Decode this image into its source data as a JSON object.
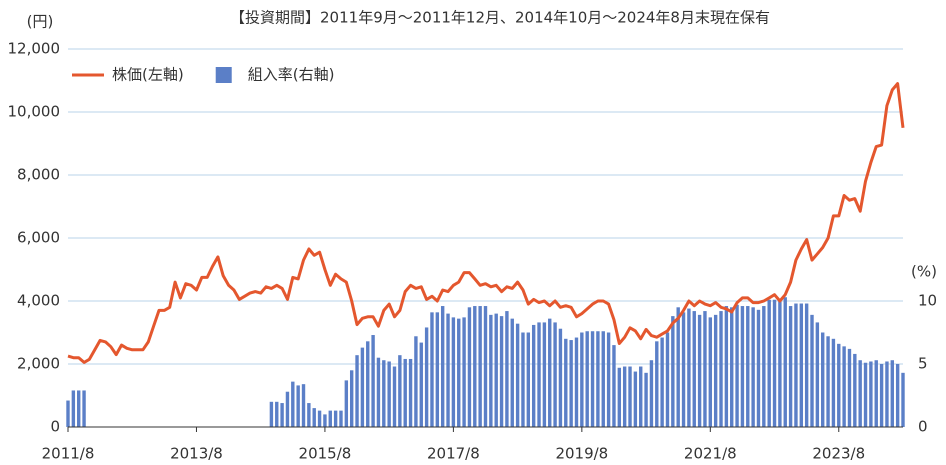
{
  "chart_data": {
    "type": "bar-line",
    "title": "【投資期間】2011年9月～2011年12月、2014年10月～2024年8月末現在保有",
    "y_unit": "(円)",
    "y2_unit": "(%)",
    "legend": "top-left",
    "grid": true,
    "ylim": [
      0,
      12000
    ],
    "yticks": [
      0,
      {
        "value": 2000,
        "label": "2,000"
      },
      {
        "value": 4000,
        "label": "4,000"
      },
      {
        "value": 6000,
        "label": "6,000"
      },
      {
        "value": 8000,
        "label": "8,000"
      },
      {
        "value": 10000,
        "label": "10,000"
      },
      {
        "value": 12000,
        "label": "12,000"
      }
    ],
    "y2lim": [
      0,
      30
    ],
    "y2ticks": [
      0,
      5,
      10
    ],
    "categories": [
      "2011/8",
      null,
      null,
      null,
      null,
      null,
      null,
      null,
      null,
      null,
      null,
      null,
      null,
      null,
      null,
      null,
      null,
      null,
      null,
      null,
      null,
      null,
      null,
      null,
      "2013/8",
      null,
      null,
      null,
      null,
      null,
      null,
      null,
      null,
      null,
      null,
      null,
      null,
      null,
      null,
      null,
      null,
      null,
      null,
      null,
      null,
      null,
      null,
      null,
      "2015/8",
      null,
      null,
      null,
      null,
      null,
      null,
      null,
      null,
      null,
      null,
      null,
      null,
      null,
      null,
      null,
      null,
      null,
      null,
      null,
      null,
      null,
      null,
      null,
      "2017/8",
      null,
      null,
      null,
      null,
      null,
      null,
      null,
      null,
      null,
      null,
      null,
      null,
      null,
      null,
      null,
      null,
      null,
      null,
      null,
      null,
      null,
      null,
      null,
      "2019/8",
      null,
      null,
      null,
      null,
      null,
      null,
      null,
      null,
      null,
      null,
      null,
      null,
      null,
      null,
      null,
      null,
      null,
      null,
      null,
      null,
      null,
      null,
      null,
      "2021/8",
      null,
      null,
      null,
      null,
      null,
      null,
      null,
      null,
      null,
      null,
      null,
      null,
      null,
      null,
      null,
      null,
      null,
      null,
      null,
      null,
      null,
      null,
      null,
      "2023/8",
      null,
      null,
      null,
      null,
      null,
      null,
      null,
      null,
      null,
      null,
      null,
      null
    ],
    "series": [
      {
        "name": "株価(左軸)",
        "type": "line",
        "color": "#e4572e",
        "values": [
          2250,
          2200,
          2200,
          2050,
          2150,
          2450,
          2750,
          2700,
          2550,
          2300,
          2600,
          2500,
          2450,
          2450,
          2450,
          2700,
          3200,
          3700,
          3700,
          3800,
          4600,
          4100,
          4550,
          4500,
          4350,
          4750,
          4750,
          5100,
          5400,
          4800,
          4500,
          4350,
          4050,
          4150,
          4250,
          4300,
          4250,
          4450,
          4400,
          4500,
          4400,
          4050,
          4750,
          4700,
          5300,
          5650,
          5450,
          5550,
          5000,
          4500,
          4850,
          4700,
          4600,
          4000,
          3250,
          3450,
          3500,
          3500,
          3200,
          3700,
          3900,
          3500,
          3700,
          4300,
          4500,
          4400,
          4450,
          4050,
          4150,
          4000,
          4350,
          4300,
          4500,
          4600,
          4900,
          4900,
          4700,
          4500,
          4550,
          4450,
          4500,
          4300,
          4450,
          4400,
          4600,
          4350,
          3900,
          4050,
          3950,
          4000,
          3850,
          4000,
          3800,
          3850,
          3800,
          3500,
          3600,
          3750,
          3900,
          4000,
          4000,
          3900,
          3400,
          2650,
          2850,
          3150,
          3050,
          2800,
          3100,
          2900,
          2850,
          2950,
          3050,
          3300,
          3450,
          3700,
          4000,
          3850,
          4000,
          3900,
          3850,
          3950,
          3800,
          3750,
          3650,
          3950,
          4100,
          4100,
          3950,
          3950,
          4000,
          4100,
          4200,
          4000,
          4200,
          4600,
          5300,
          5650,
          5950,
          5300,
          5500,
          5700,
          6000,
          6700,
          6700,
          7350,
          7200,
          7250,
          6850,
          7800,
          8400,
          8900,
          8950,
          10200,
          10700,
          10900,
          9500
        ]
      },
      {
        "name": "組入率(右軸)",
        "type": "bar",
        "axis": "y2",
        "color": "#5b7fc7",
        "values": [
          2.1,
          2.9,
          2.9,
          2.9,
          null,
          null,
          null,
          null,
          null,
          null,
          null,
          null,
          null,
          null,
          null,
          null,
          null,
          null,
          null,
          null,
          null,
          null,
          null,
          null,
          null,
          null,
          null,
          null,
          null,
          null,
          null,
          null,
          null,
          null,
          null,
          null,
          null,
          null,
          2.0,
          2.0,
          1.9,
          2.8,
          3.6,
          3.3,
          3.4,
          1.9,
          1.5,
          1.3,
          1.0,
          1.3,
          1.3,
          1.3,
          3.7,
          4.5,
          5.7,
          6.3,
          6.8,
          7.3,
          5.5,
          5.3,
          5.2,
          4.8,
          5.7,
          5.4,
          5.4,
          7.2,
          6.7,
          7.9,
          9.1,
          9.1,
          9.6,
          9.0,
          8.7,
          8.6,
          8.7,
          9.5,
          9.6,
          9.6,
          9.6,
          8.9,
          9.0,
          8.8,
          9.2,
          8.6,
          8.2,
          7.5,
          7.5,
          8.1,
          8.3,
          8.3,
          8.6,
          8.3,
          7.8,
          7.0,
          6.9,
          7.1,
          7.5,
          7.6,
          7.6,
          7.6,
          7.6,
          7.5,
          6.5,
          4.7,
          4.8,
          4.8,
          4.4,
          4.8,
          4.3,
          5.3,
          6.8,
          7.1,
          7.5,
          8.8,
          9.5,
          9.1,
          9.4,
          9.2,
          8.9,
          9.2,
          8.7,
          8.9,
          9.2,
          9.6,
          9.5,
          9.7,
          9.6,
          9.6,
          9.5,
          9.3,
          9.6,
          10.1,
          10.1,
          10.1,
          10.3,
          9.6,
          9.8,
          9.8,
          9.8,
          8.9,
          8.3,
          7.5,
          7.2,
          7.0,
          6.6,
          6.4,
          6.2,
          5.8,
          5.3,
          5.1,
          5.2,
          5.3,
          5.0,
          5.2,
          5.3,
          5.0,
          4.3
        ]
      }
    ]
  }
}
